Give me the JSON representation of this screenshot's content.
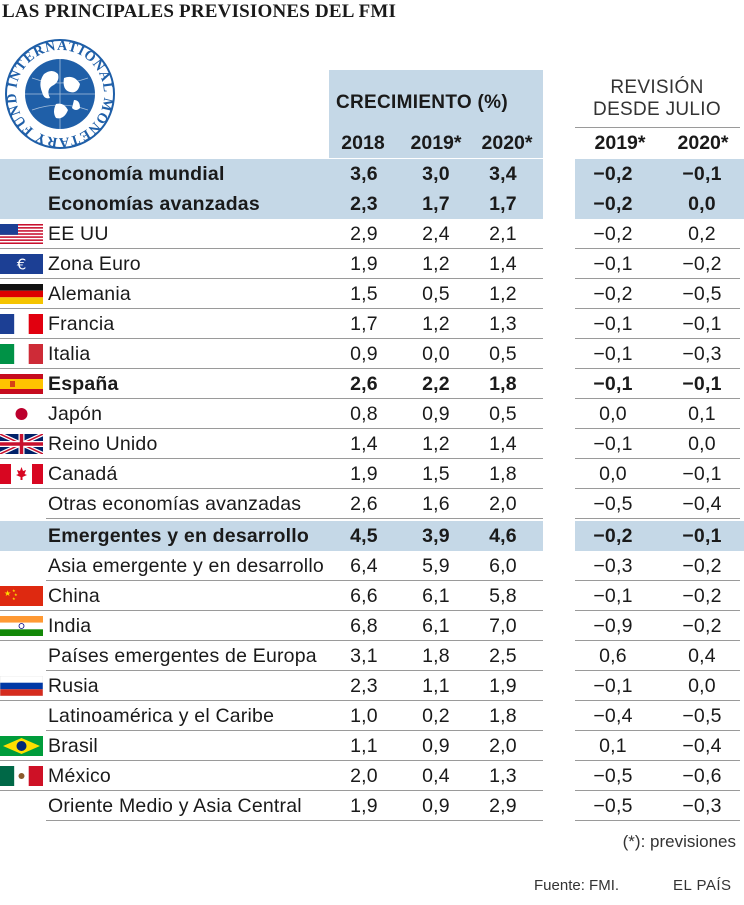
{
  "title": "LAS PRINCIPALES PREVISIONES DEL FMI",
  "logo_text": "INTERNATIONAL MONETARY FUND",
  "colors": {
    "band": "#c5d8e7",
    "text": "#1a1a1a",
    "logo_blue": "#1f5fa8"
  },
  "chart_data": {
    "type": "table",
    "group_headers": [
      {
        "label": "CRECIMIENTO (%)"
      },
      {
        "lines": [
          "REVISIÓN",
          "DESDE JULIO"
        ]
      }
    ],
    "columns": [
      "2018",
      "2019*",
      "2020*",
      "2019*",
      "2020*"
    ],
    "rows": [
      {
        "label": "Economía mundial",
        "values": [
          "3,6",
          "3,0",
          "3,4",
          "−0,2",
          "−0,1"
        ],
        "style": "band",
        "flag": ""
      },
      {
        "label": "Economías avanzadas",
        "values": [
          "2,3",
          "1,7",
          "1,7",
          "−0,2",
          "0,0"
        ],
        "style": "band",
        "flag": ""
      },
      {
        "label": "EE UU",
        "values": [
          "2,9",
          "2,4",
          "2,1",
          "−0,2",
          "0,2"
        ],
        "style": "normal",
        "flag": "us-flag-icon"
      },
      {
        "label": "Zona Euro",
        "values": [
          "1,9",
          "1,2",
          "1,4",
          "−0,1",
          "−0,2"
        ],
        "style": "normal",
        "flag": "eu-flag-icon"
      },
      {
        "label": "Alemania",
        "values": [
          "1,5",
          "0,5",
          "1,2",
          "−0,2",
          "−0,5"
        ],
        "style": "normal",
        "flag": "germany-flag-icon"
      },
      {
        "label": "Francia",
        "values": [
          "1,7",
          "1,2",
          "1,3",
          "−0,1",
          "−0,1"
        ],
        "style": "normal",
        "flag": "france-flag-icon"
      },
      {
        "label": "Italia",
        "values": [
          "0,9",
          "0,0",
          "0,5",
          "−0,1",
          "−0,3"
        ],
        "style": "normal",
        "flag": "italy-flag-icon"
      },
      {
        "label": "España",
        "values": [
          "2,6",
          "2,2",
          "1,8",
          "−0,1",
          "−0,1"
        ],
        "style": "bold",
        "flag": "spain-flag-icon"
      },
      {
        "label": "Japón",
        "values": [
          "0,8",
          "0,9",
          "0,5",
          "0,0",
          "0,1"
        ],
        "style": "normal",
        "flag": "japan-flag-icon"
      },
      {
        "label": "Reino Unido",
        "values": [
          "1,4",
          "1,2",
          "1,4",
          "−0,1",
          "0,0"
        ],
        "style": "normal",
        "flag": "uk-flag-icon"
      },
      {
        "label": "Canadá",
        "values": [
          "1,9",
          "1,5",
          "1,8",
          "0,0",
          "−0,1"
        ],
        "style": "normal",
        "flag": "canada-flag-icon"
      },
      {
        "label": "Otras economías avanzadas",
        "values": [
          "2,6",
          "1,6",
          "2,0",
          "−0,5",
          "−0,4"
        ],
        "style": "normal",
        "flag": ""
      },
      {
        "label": "Emergentes y en desarrollo",
        "values": [
          "4,5",
          "3,9",
          "4,6",
          "−0,2",
          "−0,1"
        ],
        "style": "band",
        "flag": ""
      },
      {
        "label": "Asia emergente y en desarrollo",
        "values": [
          "6,4",
          "5,9",
          "6,0",
          "−0,3",
          "−0,2"
        ],
        "style": "normal",
        "flag": ""
      },
      {
        "label": "China",
        "values": [
          "6,6",
          "6,1",
          "5,8",
          "−0,1",
          "−0,2"
        ],
        "style": "normal",
        "flag": "china-flag-icon"
      },
      {
        "label": "India",
        "values": [
          "6,8",
          "6,1",
          "7,0",
          "−0,9",
          "−0,2"
        ],
        "style": "normal",
        "flag": "india-flag-icon"
      },
      {
        "label": "Países emergentes de Europa",
        "values": [
          "3,1",
          "1,8",
          "2,5",
          "0,6",
          "0,4"
        ],
        "style": "normal",
        "flag": ""
      },
      {
        "label": "Rusia",
        "values": [
          "2,3",
          "1,1",
          "1,9",
          "−0,1",
          "0,0"
        ],
        "style": "normal",
        "flag": "russia-flag-icon"
      },
      {
        "label": "Latinoamérica y el Caribe",
        "values": [
          "1,0",
          "0,2",
          "1,8",
          "−0,4",
          "−0,5"
        ],
        "style": "normal",
        "flag": ""
      },
      {
        "label": "Brasil",
        "values": [
          "1,1",
          "0,9",
          "2,0",
          "0,1",
          "−0,4"
        ],
        "style": "normal",
        "flag": "brazil-flag-icon"
      },
      {
        "label": "México",
        "values": [
          "2,0",
          "0,4",
          "1,3",
          "−0,5",
          "−0,6"
        ],
        "style": "normal",
        "flag": "mexico-flag-icon"
      },
      {
        "label": "Oriente Medio y Asia Central",
        "values": [
          "1,9",
          "0,9",
          "2,9",
          "−0,5",
          "−0,3"
        ],
        "style": "normal",
        "flag": ""
      }
    ]
  },
  "footnote": "(*): previsiones",
  "source": "Fuente: FMI.",
  "brand": "EL PAÍS"
}
